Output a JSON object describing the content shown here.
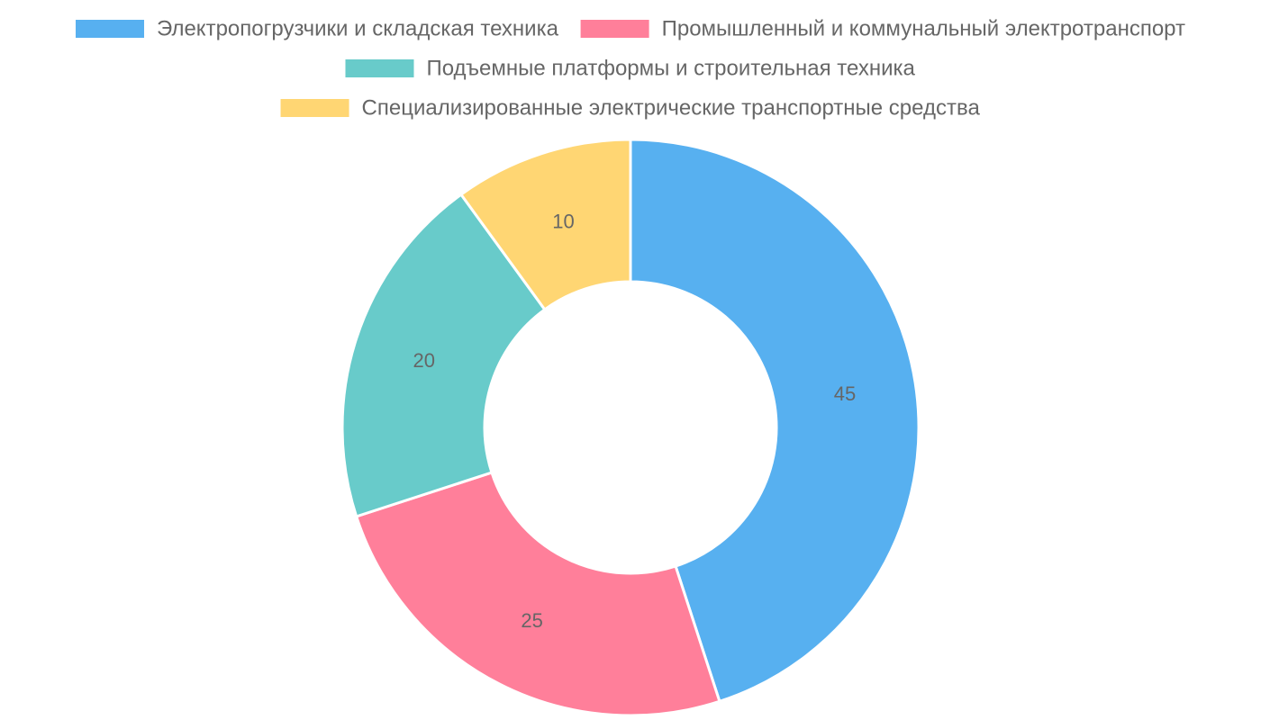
{
  "chart_data": {
    "type": "pie",
    "variant": "doughnut",
    "categories": [
      "Электропогрузчики и складская техника",
      "Промышленный и коммунальный электротранспорт",
      "Подъемные платформы и строительная техника",
      "Специализированные электрические транспортные средства"
    ],
    "values": [
      45,
      25,
      20,
      10
    ],
    "colors": [
      "#57b0f0",
      "#ff7f9a",
      "#68cbca",
      "#ffd673"
    ],
    "title": "",
    "legend": {
      "position": "top"
    }
  }
}
